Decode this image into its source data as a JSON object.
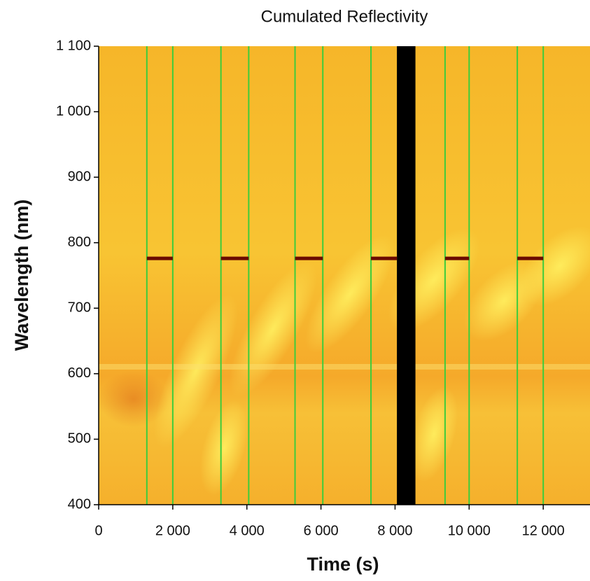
{
  "chart_data": {
    "type": "heatmap",
    "title": "Cumulated Reflectivity",
    "x_label": "Time (s)",
    "y_label": "Wavelength (nm)",
    "xlim": [
      0,
      13300
    ],
    "ylim": [
      400,
      1100
    ],
    "xticks": [
      0,
      {
        "value": 2000,
        "label": "2 000"
      },
      {
        "value": 4000,
        "label": "4 000"
      },
      {
        "value": 6000,
        "label": "6 000"
      },
      {
        "value": 8000,
        "label": "8 000"
      },
      {
        "value": 10000,
        "label": "10 000"
      },
      {
        "value": 12000,
        "label": "12 000"
      }
    ],
    "yticks": [
      400,
      500,
      600,
      700,
      800,
      900,
      {
        "value": 1000,
        "label": "1 000"
      },
      {
        "value": 1100,
        "label": "1 100"
      }
    ],
    "vlines": {
      "color": "#3ccc3c",
      "x": [
        1300,
        2000,
        3300,
        4050,
        5300,
        6050,
        7350,
        9350,
        10000,
        11300,
        12000
      ]
    },
    "band": {
      "color": "#000000",
      "x": [
        8050,
        8550
      ]
    },
    "segments": {
      "color": "#6a0a00",
      "y": 776,
      "x": [
        [
          1300,
          2000
        ],
        [
          3300,
          4050
        ],
        [
          5300,
          6050
        ],
        [
          7350,
          8050
        ],
        [
          9350,
          10000
        ],
        [
          11300,
          12000
        ]
      ]
    }
  }
}
